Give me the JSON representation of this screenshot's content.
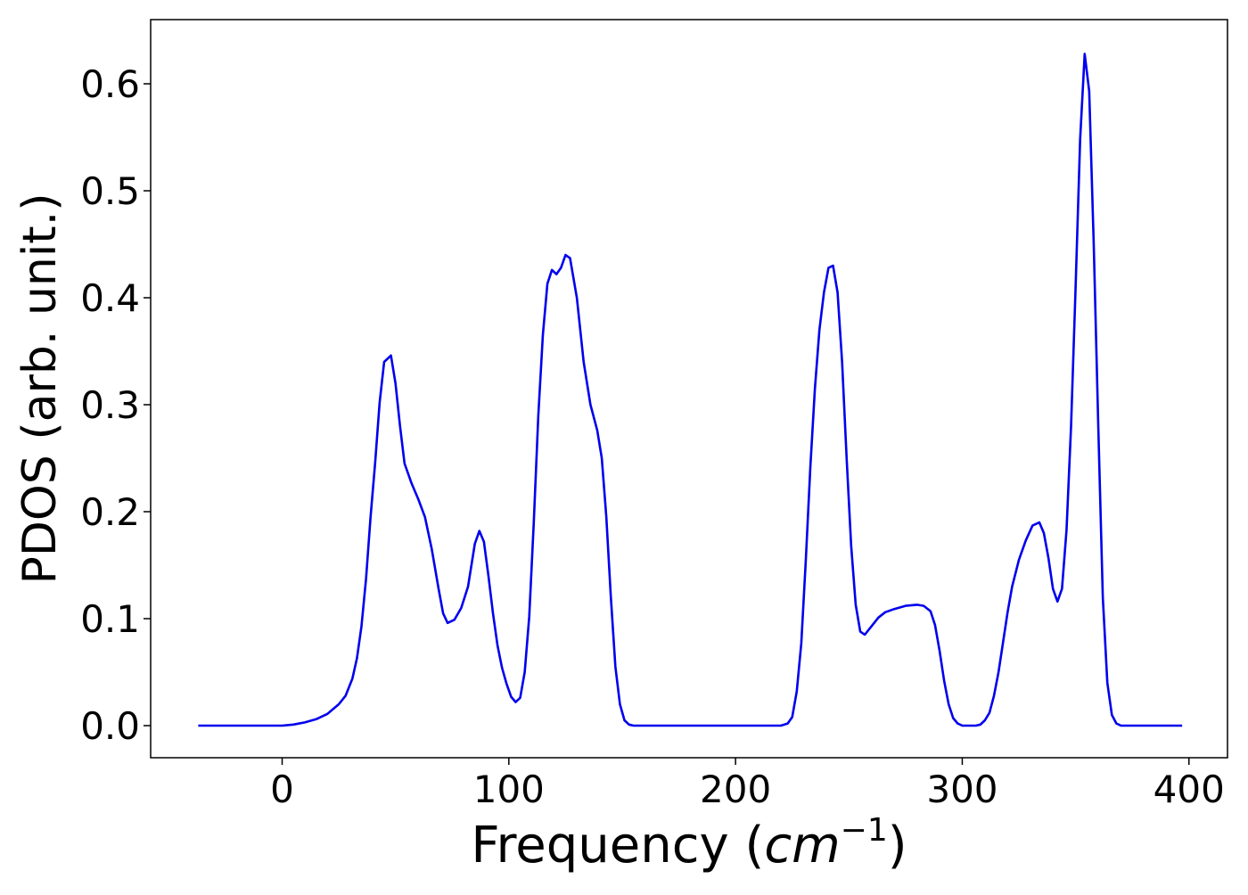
{
  "chart_data": {
    "type": "line",
    "xlabel_main": "Frequency (",
    "xlabel_unit": "cm",
    "xlabel_exponent": "−1",
    "xlabel_close": ")",
    "ylabel": "PDOS (arb. unit.)",
    "xlim": [
      -58,
      417
    ],
    "ylim": [
      -0.03,
      0.66
    ],
    "x_ticks": [
      0,
      100,
      200,
      300,
      400
    ],
    "y_ticks": [
      0.0,
      0.1,
      0.2,
      0.3,
      0.4,
      0.5,
      0.6
    ],
    "x_tick_labels": [
      "0",
      "100",
      "200",
      "300",
      "400"
    ],
    "y_tick_labels": [
      "0.0",
      "0.1",
      "0.2",
      "0.3",
      "0.4",
      "0.5",
      "0.6"
    ],
    "grid": false,
    "series": [
      {
        "color": "#0000ee",
        "points": [
          [
            -37,
            0.0
          ],
          [
            -20,
            0.0
          ],
          [
            0,
            0.0
          ],
          [
            5,
            0.001
          ],
          [
            10,
            0.003
          ],
          [
            15,
            0.006
          ],
          [
            20,
            0.011
          ],
          [
            25,
            0.02
          ],
          [
            28,
            0.028
          ],
          [
            31,
            0.044
          ],
          [
            33,
            0.063
          ],
          [
            35,
            0.093
          ],
          [
            37,
            0.137
          ],
          [
            39,
            0.195
          ],
          [
            41,
            0.245
          ],
          [
            43,
            0.302
          ],
          [
            45,
            0.34
          ],
          [
            48,
            0.346
          ],
          [
            50,
            0.32
          ],
          [
            52,
            0.28
          ],
          [
            54,
            0.245
          ],
          [
            57,
            0.227
          ],
          [
            60,
            0.212
          ],
          [
            63,
            0.195
          ],
          [
            66,
            0.165
          ],
          [
            69,
            0.128
          ],
          [
            71,
            0.105
          ],
          [
            73,
            0.096
          ],
          [
            76,
            0.099
          ],
          [
            79,
            0.11
          ],
          [
            82,
            0.13
          ],
          [
            85,
            0.17
          ],
          [
            87,
            0.182
          ],
          [
            89,
            0.172
          ],
          [
            91,
            0.14
          ],
          [
            93,
            0.105
          ],
          [
            95,
            0.075
          ],
          [
            97,
            0.054
          ],
          [
            99,
            0.039
          ],
          [
            101,
            0.027
          ],
          [
            103,
            0.022
          ],
          [
            105,
            0.026
          ],
          [
            107,
            0.05
          ],
          [
            109,
            0.102
          ],
          [
            111,
            0.19
          ],
          [
            113,
            0.29
          ],
          [
            115,
            0.365
          ],
          [
            117,
            0.413
          ],
          [
            119,
            0.426
          ],
          [
            121,
            0.422
          ],
          [
            123,
            0.428
          ],
          [
            125,
            0.44
          ],
          [
            127,
            0.437
          ],
          [
            130,
            0.4
          ],
          [
            133,
            0.34
          ],
          [
            136,
            0.3
          ],
          [
            139,
            0.276
          ],
          [
            141,
            0.25
          ],
          [
            143,
            0.195
          ],
          [
            145,
            0.12
          ],
          [
            147,
            0.055
          ],
          [
            149,
            0.02
          ],
          [
            151,
            0.005
          ],
          [
            153,
            0.001
          ],
          [
            155,
            0.0
          ],
          [
            180,
            0.0
          ],
          [
            200,
            0.0
          ],
          [
            220,
            0.0
          ],
          [
            223,
            0.002
          ],
          [
            225,
            0.008
          ],
          [
            227,
            0.032
          ],
          [
            229,
            0.077
          ],
          [
            231,
            0.155
          ],
          [
            233,
            0.242
          ],
          [
            235,
            0.315
          ],
          [
            237,
            0.37
          ],
          [
            239,
            0.405
          ],
          [
            241,
            0.428
          ],
          [
            243,
            0.43
          ],
          [
            245,
            0.405
          ],
          [
            247,
            0.34
          ],
          [
            249,
            0.25
          ],
          [
            251,
            0.168
          ],
          [
            253,
            0.113
          ],
          [
            255,
            0.088
          ],
          [
            257,
            0.085
          ],
          [
            260,
            0.093
          ],
          [
            263,
            0.101
          ],
          [
            266,
            0.106
          ],
          [
            270,
            0.109
          ],
          [
            275,
            0.112
          ],
          [
            280,
            0.113
          ],
          [
            283,
            0.112
          ],
          [
            286,
            0.107
          ],
          [
            288,
            0.094
          ],
          [
            290,
            0.07
          ],
          [
            292,
            0.042
          ],
          [
            294,
            0.02
          ],
          [
            296,
            0.007
          ],
          [
            298,
            0.002
          ],
          [
            300,
            0.0
          ],
          [
            306,
            0.0
          ],
          [
            308,
            0.001
          ],
          [
            310,
            0.005
          ],
          [
            312,
            0.012
          ],
          [
            314,
            0.028
          ],
          [
            316,
            0.05
          ],
          [
            318,
            0.078
          ],
          [
            320,
            0.106
          ],
          [
            322,
            0.13
          ],
          [
            325,
            0.155
          ],
          [
            328,
            0.173
          ],
          [
            331,
            0.187
          ],
          [
            334,
            0.19
          ],
          [
            336,
            0.18
          ],
          [
            338,
            0.157
          ],
          [
            340,
            0.128
          ],
          [
            342,
            0.116
          ],
          [
            344,
            0.128
          ],
          [
            346,
            0.183
          ],
          [
            348,
            0.28
          ],
          [
            350,
            0.41
          ],
          [
            352,
            0.548
          ],
          [
            354,
            0.628
          ],
          [
            356,
            0.593
          ],
          [
            358,
            0.45
          ],
          [
            360,
            0.28
          ],
          [
            362,
            0.12
          ],
          [
            364,
            0.04
          ],
          [
            366,
            0.01
          ],
          [
            368,
            0.002
          ],
          [
            370,
            0.0
          ],
          [
            380,
            0.0
          ],
          [
            397,
            0.0
          ]
        ]
      }
    ]
  }
}
